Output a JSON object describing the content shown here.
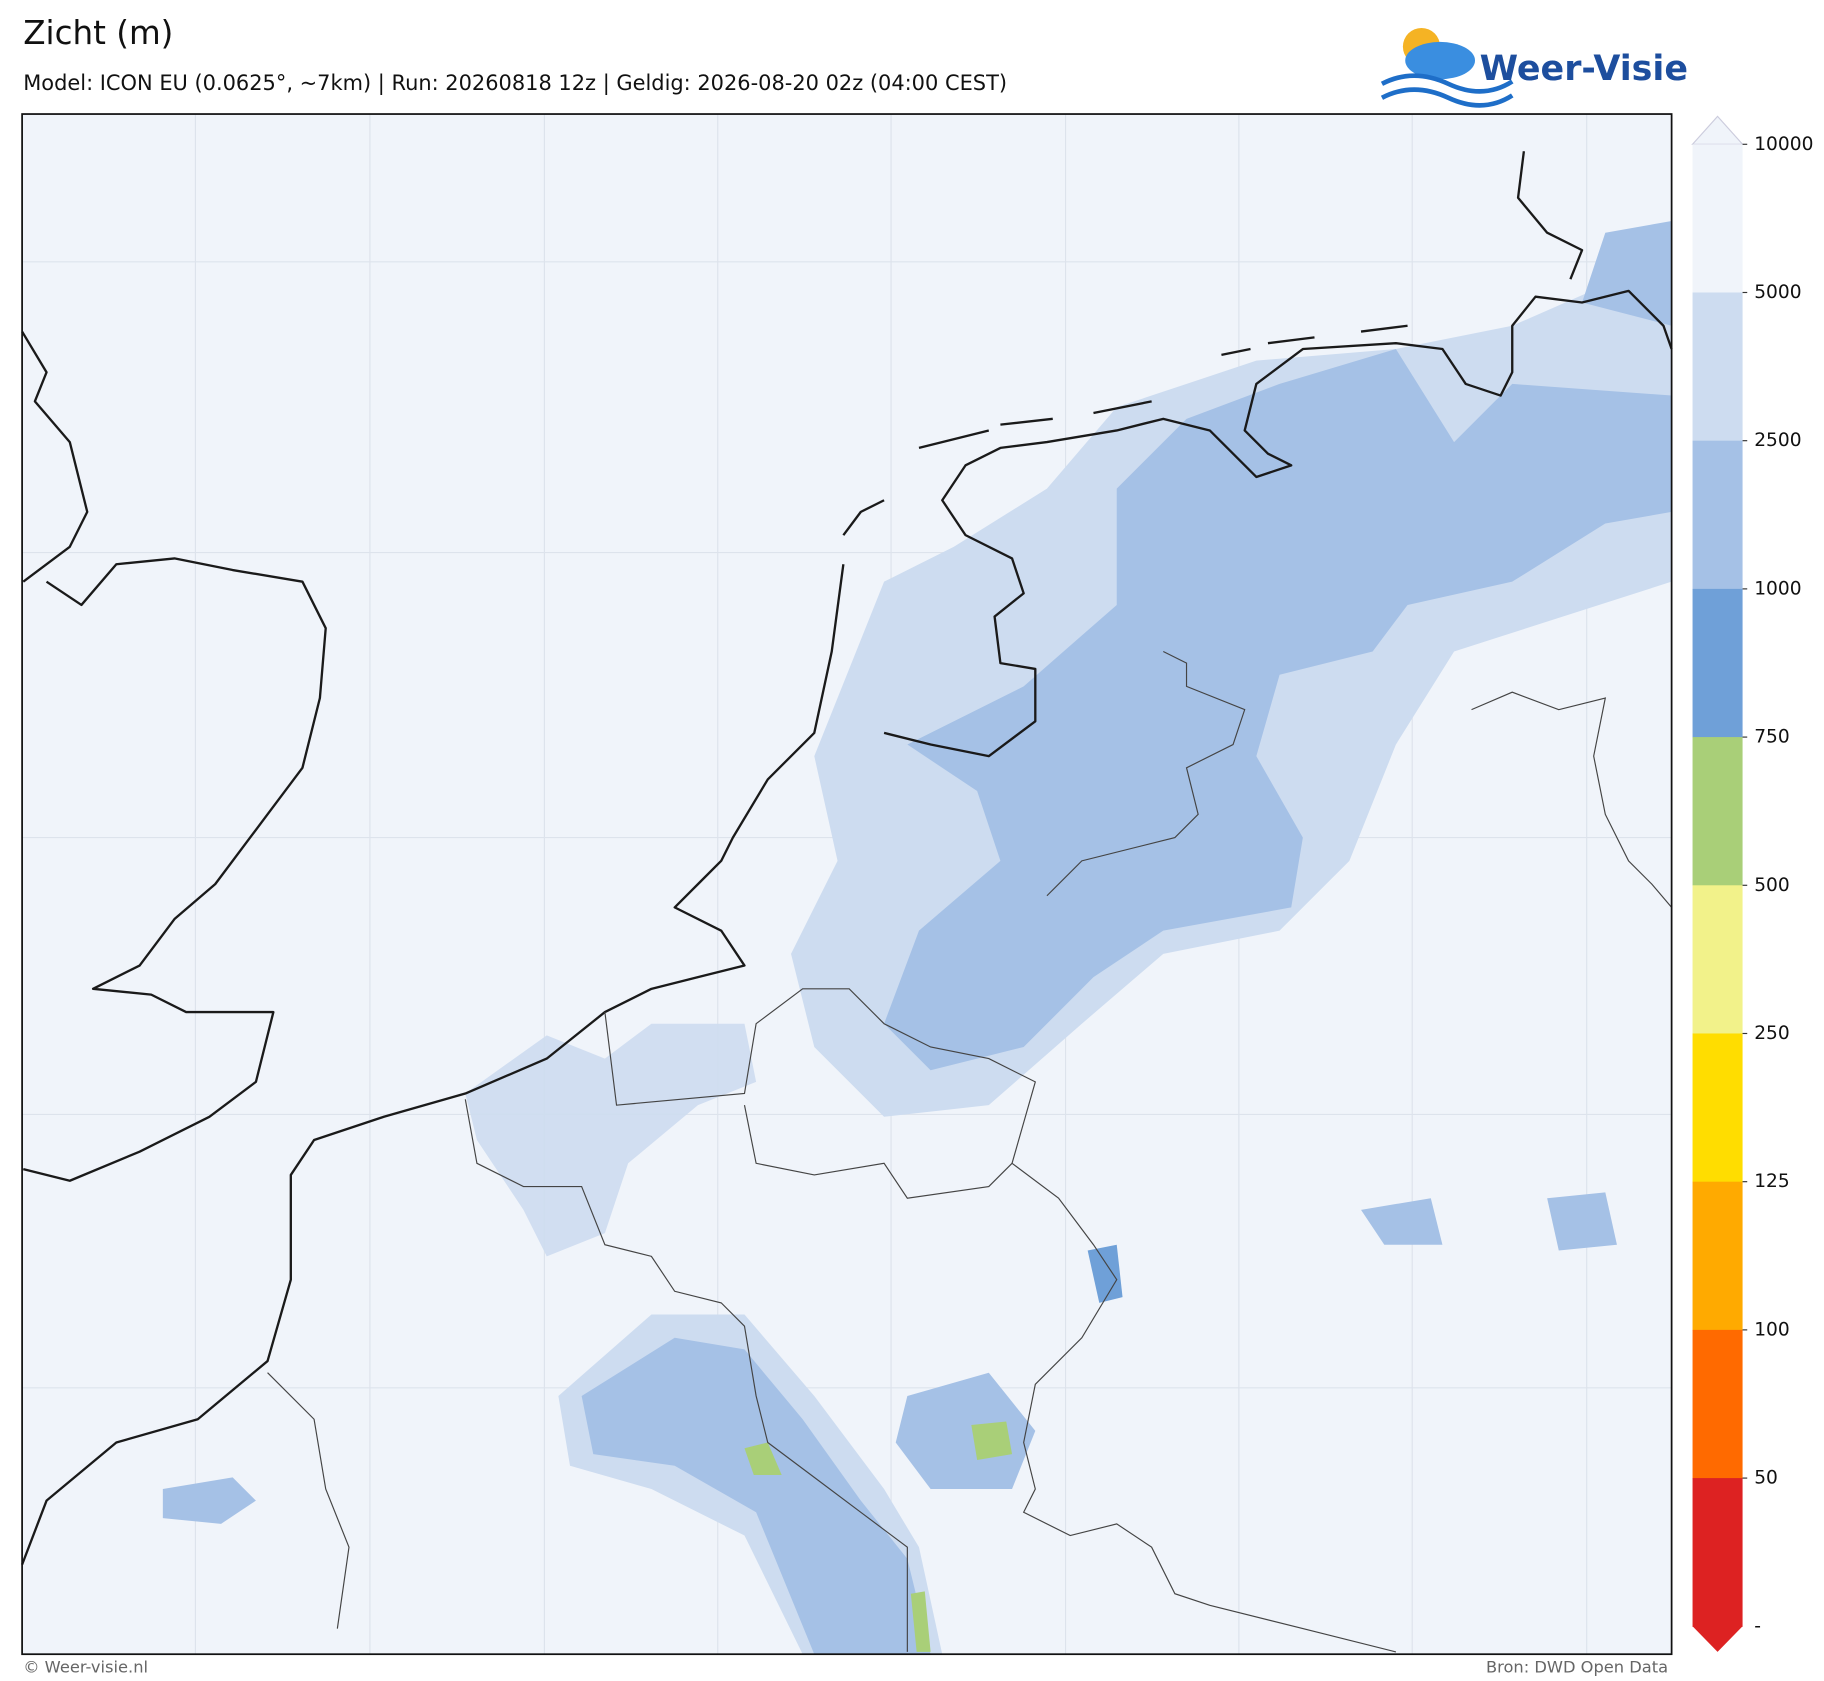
{
  "header": {
    "title": "Zicht (m)",
    "subtitle": "Model: ICON EU (0.0625°, ~7km)  |  Run: 20260818 12z  |  Geldig: 2026-08-20 02z (04:00 CEST)",
    "logo": "Weer-Visie"
  },
  "colorbar": {
    "ticks": [
      10000,
      5000,
      2500,
      1000,
      750,
      500,
      250,
      125,
      100,
      50
    ],
    "bottom_label": "-",
    "colors": [
      "#f0f4fa",
      "#cddcf0",
      "#a5c1e6",
      "#6fa0d8",
      "#a9cf78",
      "#f2f28a",
      "#ffdd00",
      "#ffaa00",
      "#ff6a00",
      "#dd2222"
    ]
  },
  "footer": {
    "credit": "© Weer-visie.nl",
    "source": "Bron: DWD Open Data"
  }
}
